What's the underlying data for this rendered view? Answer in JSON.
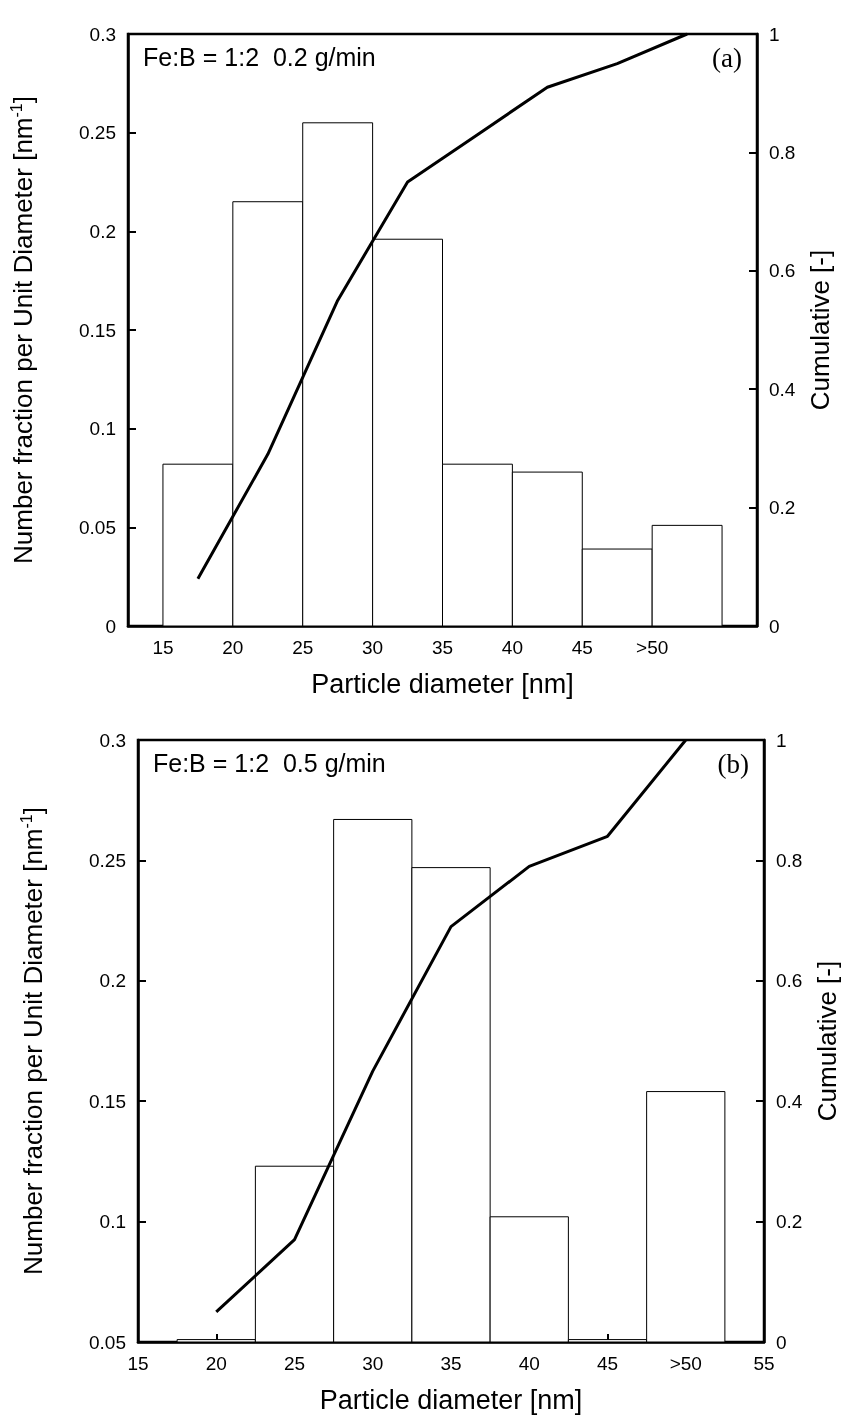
{
  "chart_data": [
    {
      "type": "histogram",
      "xlabel": "Particle diameter [nm]",
      "ylabel": "Number fraction per Unit Diameter [nm$^{-1}$]",
      "y2label": "Cumulative [-]",
      "annotations": [
        "Fe:B = 1:2  0.2 g/min",
        "(a)"
      ],
      "bins": [
        15,
        20,
        25,
        30,
        35,
        40,
        45,
        50,
        55
      ],
      "values": [
        0.082,
        0.215,
        0.255,
        0.196,
        0.082,
        0.078,
        0.039,
        0.051
      ],
      "color": "#ffffff",
      "series": [
        {
          "type": "line",
          "axis": "y2",
          "color": "#000000",
          "x": [
            17.5,
            22.5,
            27.5,
            32.5,
            37.5,
            42.5,
            47.5,
            52.5
          ],
          "values": [
            0.08,
            0.29,
            0.55,
            0.75,
            0.83,
            0.91,
            0.95,
            1.0
          ]
        }
      ],
      "xlim": [
        12.5,
        57.5
      ],
      "xticks": [
        15,
        20,
        {
          "value": 22.5,
          "label": null
        },
        25,
        30,
        {
          "value": 32.5,
          "label": null
        },
        35,
        40,
        {
          "value": 42.5,
          "label": null
        },
        45,
        {
          "value": 50,
          "label": ">50"
        },
        {
          "value": 52.5,
          "label": null
        }
      ],
      "ylim": [
        0,
        0.3
      ],
      "yticks": [
        0,
        0.05,
        0.1,
        0.15,
        0.2,
        0.25,
        0.3
      ],
      "y2lim": [
        0,
        1
      ],
      "y2ticks": [
        0,
        0.2,
        0.4,
        0.6,
        0.8,
        1
      ]
    },
    {
      "type": "histogram",
      "xlabel": "Particle diameter [nm]",
      "ylabel": "Number fraction per Unit Diameter [nm$^{-1}$]",
      "y2label": "Cumulative [-]",
      "annotations": [
        "Fe:B = 1:2  0.5 g/min",
        "(b)"
      ],
      "bins": [
        17.5,
        22.5,
        27.5,
        32.5,
        37.5,
        42.5,
        47.5,
        52.5
      ],
      "values": [
        0.051,
        0.123,
        0.267,
        0.247,
        0.102,
        0.051,
        0.154
      ],
      "color": "#ffffff",
      "series": [
        {
          "type": "line",
          "axis": "y2",
          "color": "#000000",
          "x": [
            20,
            25,
            30,
            35,
            40,
            45,
            50
          ],
          "values": [
            0.05,
            0.17,
            0.45,
            0.69,
            0.79,
            0.84,
            1.0
          ]
        }
      ],
      "xlim": [
        15,
        55
      ],
      "xticks": [
        15,
        20,
        25,
        30,
        35,
        40,
        45,
        {
          "value": 50,
          "label": ">50"
        },
        55
      ],
      "ylim": [
        0.05,
        0.3
      ],
      "yticks": [
        0.05,
        0.1,
        0.15,
        0.2,
        0.25,
        0.3
      ],
      "y2lim": [
        0,
        1
      ],
      "y2ticks": [
        0,
        0.2,
        0.4,
        0.6,
        0.8,
        1
      ]
    }
  ]
}
